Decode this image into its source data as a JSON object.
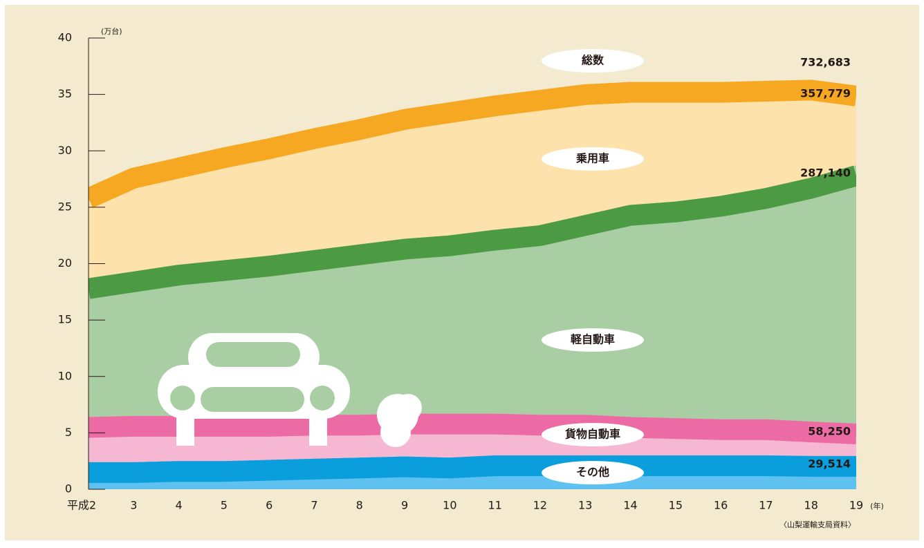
{
  "chart_data": {
    "type": "area",
    "y_unit": "(万台)",
    "x_unit": "(年)",
    "source": "〈山梨運輸支局資料〉",
    "total_name": "総数",
    "total_value_label": "732,683",
    "categories": [
      "平成2",
      "3",
      "4",
      "5",
      "6",
      "7",
      "8",
      "9",
      "10",
      "11",
      "12",
      "13",
      "14",
      "15",
      "16",
      "17",
      "18",
      "19"
    ],
    "series": [
      {
        "name": "乗用車",
        "color": "#f7a823",
        "fill": "#fde2ab",
        "values": [
          26.7,
          28.5,
          29.4,
          30.3,
          31.1,
          32.0,
          32.8,
          33.7,
          34.3,
          34.9,
          35.4,
          35.9,
          36.1,
          36.1,
          36.1,
          36.2,
          36.3,
          35.7779
        ],
        "value_labels": [
          null,
          null,
          null,
          null,
          null,
          null,
          null,
          null,
          null,
          null,
          null,
          null,
          null,
          null,
          null,
          null,
          null,
          "357,779"
        ]
      },
      {
        "name": "軽自動車",
        "color": "#4d9a45",
        "fill": "#a9cea3",
        "values": [
          18.7,
          19.3,
          19.9,
          20.3,
          20.7,
          21.2,
          21.7,
          22.2,
          22.5,
          23.0,
          23.4,
          24.3,
          25.2,
          25.5,
          26.0,
          26.7,
          27.6,
          28.714
        ],
        "value_labels": [
          null,
          null,
          null,
          null,
          null,
          null,
          null,
          null,
          null,
          null,
          null,
          null,
          null,
          null,
          null,
          null,
          null,
          "287,140"
        ]
      },
      {
        "name": "貨物自動車",
        "color": "#ec6ba5",
        "fill": "#f5b7d1",
        "values": [
          6.4,
          6.5,
          6.5,
          6.5,
          6.5,
          6.6,
          6.6,
          6.7,
          6.7,
          6.7,
          6.6,
          6.6,
          6.4,
          6.3,
          6.2,
          6.2,
          6.0,
          5.825
        ],
        "value_labels": [
          null,
          null,
          null,
          null,
          null,
          null,
          null,
          null,
          null,
          null,
          null,
          null,
          null,
          null,
          null,
          null,
          null,
          "58,250"
        ]
      },
      {
        "name": "その他",
        "color": "#0a9fdc",
        "fill": "#5fc1ef",
        "values": [
          2.4,
          2.4,
          2.5,
          2.5,
          2.6,
          2.7,
          2.8,
          2.9,
          2.8,
          3.0,
          3.0,
          3.0,
          3.0,
          3.0,
          3.0,
          3.0,
          2.95,
          2.9514
        ],
        "value_labels": [
          null,
          null,
          null,
          null,
          null,
          null,
          null,
          null,
          null,
          null,
          null,
          null,
          null,
          null,
          null,
          null,
          null,
          "29,514"
        ]
      }
    ],
    "ylim": [
      0,
      40
    ],
    "yticks": [
      0,
      5,
      10,
      15,
      20,
      25,
      30,
      35,
      40
    ]
  }
}
